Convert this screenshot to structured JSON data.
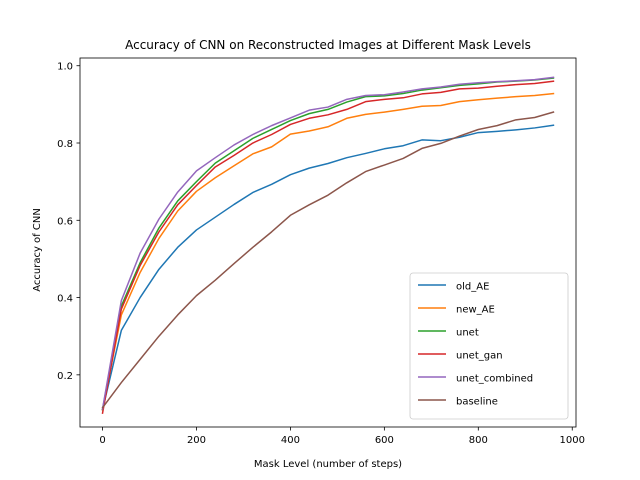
{
  "chart_data": {
    "type": "line",
    "title": "Accuracy of CNN on Reconstructed Images at Different Mask Levels",
    "xlabel": "Mask Level (number of steps)",
    "ylabel": "Accuracy of CNN",
    "xlim": [
      -48,
      1008
    ],
    "ylim": [
      0.065,
      1.02
    ],
    "x_ticks": [
      "0",
      "200",
      "400",
      "600",
      "800",
      "1000"
    ],
    "y_ticks": [
      "0.2",
      "0.4",
      "0.6",
      "0.8",
      "1.0"
    ],
    "legend_position": "lower-right",
    "grid": false,
    "x": [
      0,
      40,
      80,
      120,
      160,
      200,
      240,
      280,
      320,
      360,
      400,
      440,
      480,
      520,
      560,
      600,
      640,
      680,
      720,
      760,
      800,
      840,
      880,
      920,
      960
    ],
    "series": [
      {
        "name": "old_AE",
        "color": "#1f77b4",
        "values": [
          0.11,
          0.315,
          0.4,
          0.473,
          0.53,
          0.575,
          0.608,
          0.641,
          0.672,
          0.693,
          0.718,
          0.735,
          0.747,
          0.762,
          0.773,
          0.785,
          0.793,
          0.808,
          0.806,
          0.815,
          0.827,
          0.83,
          0.834,
          0.839,
          0.846
        ]
      },
      {
        "name": "new_AE",
        "color": "#ff7f0e",
        "values": [
          0.11,
          0.355,
          0.465,
          0.553,
          0.624,
          0.675,
          0.71,
          0.741,
          0.772,
          0.79,
          0.823,
          0.831,
          0.842,
          0.864,
          0.874,
          0.88,
          0.887,
          0.895,
          0.897,
          0.907,
          0.912,
          0.916,
          0.92,
          0.923,
          0.928
        ]
      },
      {
        "name": "unet",
        "color": "#2ca02c",
        "values": [
          0.11,
          0.378,
          0.49,
          0.58,
          0.65,
          0.7,
          0.748,
          0.78,
          0.812,
          0.835,
          0.858,
          0.876,
          0.887,
          0.906,
          0.92,
          0.922,
          0.928,
          0.937,
          0.943,
          0.949,
          0.953,
          0.958,
          0.96,
          0.963,
          0.968
        ]
      },
      {
        "name": "unet_gan",
        "color": "#d62728",
        "values": [
          0.101,
          0.37,
          0.483,
          0.57,
          0.64,
          0.69,
          0.738,
          0.768,
          0.8,
          0.822,
          0.848,
          0.864,
          0.873,
          0.887,
          0.907,
          0.913,
          0.917,
          0.927,
          0.931,
          0.94,
          0.942,
          0.947,
          0.951,
          0.954,
          0.96
        ]
      },
      {
        "name": "unet_combined",
        "color": "#9467bd",
        "values": [
          0.112,
          0.392,
          0.515,
          0.603,
          0.673,
          0.728,
          0.762,
          0.795,
          0.822,
          0.845,
          0.865,
          0.885,
          0.893,
          0.913,
          0.923,
          0.925,
          0.932,
          0.94,
          0.945,
          0.952,
          0.956,
          0.959,
          0.961,
          0.964,
          0.97
        ]
      },
      {
        "name": "baseline",
        "color": "#8c564b",
        "values": [
          0.115,
          0.18,
          0.24,
          0.3,
          0.355,
          0.405,
          0.445,
          0.488,
          0.53,
          0.57,
          0.613,
          0.64,
          0.665,
          0.697,
          0.726,
          0.743,
          0.76,
          0.786,
          0.799,
          0.818,
          0.835,
          0.845,
          0.86,
          0.866,
          0.88
        ]
      }
    ]
  }
}
